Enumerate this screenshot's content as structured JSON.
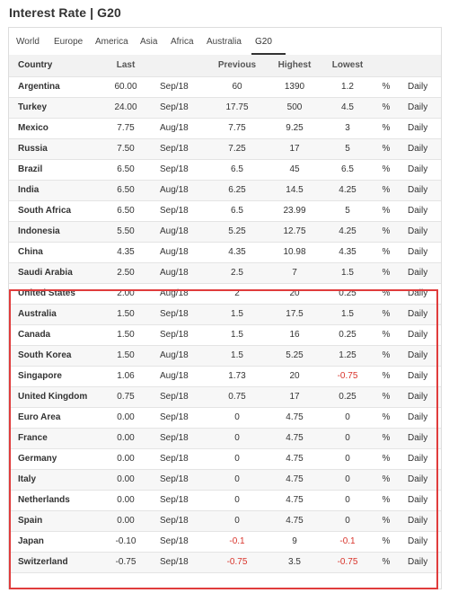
{
  "page": {
    "title": "Interest Rate | G20"
  },
  "tabs": [
    {
      "label": "World",
      "active": false
    },
    {
      "label": "Europe",
      "active": false
    },
    {
      "label": "America",
      "active": false
    },
    {
      "label": "Asia",
      "active": false
    },
    {
      "label": "Africa",
      "active": false
    },
    {
      "label": "Australia",
      "active": false
    },
    {
      "label": "G20",
      "active": true
    }
  ],
  "table": {
    "headers": {
      "country": "Country",
      "last": "Last",
      "reference": "",
      "previous": "Previous",
      "highest": "Highest",
      "lowest": "Lowest",
      "unit": "",
      "frequency": ""
    },
    "rows": [
      {
        "country": "Argentina",
        "last": "60.00",
        "reference": "Sep/18",
        "previous": "60",
        "highest": "1390",
        "lowest": "1.2",
        "unit": "%",
        "frequency": "Daily"
      },
      {
        "country": "Turkey",
        "last": "24.00",
        "reference": "Sep/18",
        "previous": "17.75",
        "highest": "500",
        "lowest": "4.5",
        "unit": "%",
        "frequency": "Daily"
      },
      {
        "country": "Mexico",
        "last": "7.75",
        "reference": "Aug/18",
        "previous": "7.75",
        "highest": "9.25",
        "lowest": "3",
        "unit": "%",
        "frequency": "Daily"
      },
      {
        "country": "Russia",
        "last": "7.50",
        "reference": "Sep/18",
        "previous": "7.25",
        "highest": "17",
        "lowest": "5",
        "unit": "%",
        "frequency": "Daily"
      },
      {
        "country": "Brazil",
        "last": "6.50",
        "reference": "Sep/18",
        "previous": "6.5",
        "highest": "45",
        "lowest": "6.5",
        "unit": "%",
        "frequency": "Daily"
      },
      {
        "country": "India",
        "last": "6.50",
        "reference": "Aug/18",
        "previous": "6.25",
        "highest": "14.5",
        "lowest": "4.25",
        "unit": "%",
        "frequency": "Daily"
      },
      {
        "country": "South Africa",
        "last": "6.50",
        "reference": "Sep/18",
        "previous": "6.5",
        "highest": "23.99",
        "lowest": "5",
        "unit": "%",
        "frequency": "Daily"
      },
      {
        "country": "Indonesia",
        "last": "5.50",
        "reference": "Aug/18",
        "previous": "5.25",
        "highest": "12.75",
        "lowest": "4.25",
        "unit": "%",
        "frequency": "Daily"
      },
      {
        "country": "China",
        "last": "4.35",
        "reference": "Aug/18",
        "previous": "4.35",
        "highest": "10.98",
        "lowest": "4.35",
        "unit": "%",
        "frequency": "Daily"
      },
      {
        "country": "Saudi Arabia",
        "last": "2.50",
        "reference": "Aug/18",
        "previous": "2.5",
        "highest": "7",
        "lowest": "1.5",
        "unit": "%",
        "frequency": "Daily"
      },
      {
        "country": "United States",
        "last": "2.00",
        "reference": "Aug/18",
        "previous": "2",
        "highest": "20",
        "lowest": "0.25",
        "unit": "%",
        "frequency": "Daily"
      },
      {
        "country": "Australia",
        "last": "1.50",
        "reference": "Sep/18",
        "previous": "1.5",
        "highest": "17.5",
        "lowest": "1.5",
        "unit": "%",
        "frequency": "Daily"
      },
      {
        "country": "Canada",
        "last": "1.50",
        "reference": "Sep/18",
        "previous": "1.5",
        "highest": "16",
        "lowest": "0.25",
        "unit": "%",
        "frequency": "Daily"
      },
      {
        "country": "South Korea",
        "last": "1.50",
        "reference": "Aug/18",
        "previous": "1.5",
        "highest": "5.25",
        "lowest": "1.25",
        "unit": "%",
        "frequency": "Daily"
      },
      {
        "country": "Singapore",
        "last": "1.06",
        "reference": "Aug/18",
        "previous": "1.73",
        "highest": "20",
        "lowest": "-0.75",
        "unit": "%",
        "frequency": "Daily"
      },
      {
        "country": "United Kingdom",
        "last": "0.75",
        "reference": "Sep/18",
        "previous": "0.75",
        "highest": "17",
        "lowest": "0.25",
        "unit": "%",
        "frequency": "Daily"
      },
      {
        "country": "Euro Area",
        "last": "0.00",
        "reference": "Sep/18",
        "previous": "0",
        "highest": "4.75",
        "lowest": "0",
        "unit": "%",
        "frequency": "Daily"
      },
      {
        "country": "France",
        "last": "0.00",
        "reference": "Sep/18",
        "previous": "0",
        "highest": "4.75",
        "lowest": "0",
        "unit": "%",
        "frequency": "Daily"
      },
      {
        "country": "Germany",
        "last": "0.00",
        "reference": "Sep/18",
        "previous": "0",
        "highest": "4.75",
        "lowest": "0",
        "unit": "%",
        "frequency": "Daily"
      },
      {
        "country": "Italy",
        "last": "0.00",
        "reference": "Sep/18",
        "previous": "0",
        "highest": "4.75",
        "lowest": "0",
        "unit": "%",
        "frequency": "Daily"
      },
      {
        "country": "Netherlands",
        "last": "0.00",
        "reference": "Sep/18",
        "previous": "0",
        "highest": "4.75",
        "lowest": "0",
        "unit": "%",
        "frequency": "Daily"
      },
      {
        "country": "Spain",
        "last": "0.00",
        "reference": "Sep/18",
        "previous": "0",
        "highest": "4.75",
        "lowest": "0",
        "unit": "%",
        "frequency": "Daily"
      },
      {
        "country": "Japan",
        "last": "-0.10",
        "reference": "Sep/18",
        "previous": "-0.1",
        "highest": "9",
        "lowest": "-0.1",
        "unit": "%",
        "frequency": "Daily"
      },
      {
        "country": "Switzerland",
        "last": "-0.75",
        "reference": "Sep/18",
        "previous": "-0.75",
        "highest": "3.5",
        "lowest": "-0.75",
        "unit": "%",
        "frequency": "Daily"
      }
    ]
  },
  "colors": {
    "highlight_border": "#e03c3c",
    "negative_text": "#d9342b",
    "header_background": "#f2f2f2"
  }
}
